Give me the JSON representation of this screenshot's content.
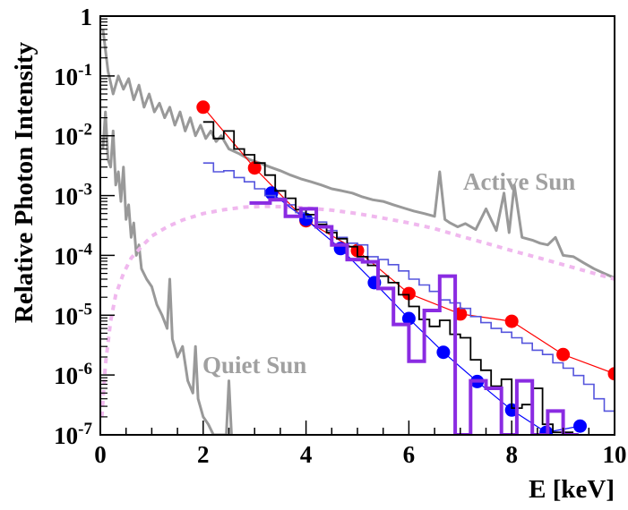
{
  "chart_data": {
    "type": "line",
    "title": "",
    "xlabel": "E [keV]",
    "ylabel": "Relative Photon Intensity",
    "xlim": [
      0,
      10
    ],
    "ylim": [
      1e-07,
      1
    ],
    "yscale": "log",
    "grid": false,
    "x_ticks": [
      "0",
      "2",
      "4",
      "6",
      "8",
      "10"
    ],
    "y_ticks": [
      {
        "mantissa": "10",
        "exp": "-7"
      },
      {
        "mantissa": "10",
        "exp": "-6"
      },
      {
        "mantissa": "10",
        "exp": "-5"
      },
      {
        "mantissa": "10",
        "exp": "-4"
      },
      {
        "mantissa": "10",
        "exp": "-3"
      },
      {
        "mantissa": "10",
        "exp": "-2"
      },
      {
        "mantissa": "10",
        "exp": "-1"
      },
      {
        "mantissa": "1",
        "exp": ""
      }
    ],
    "annotations": [
      {
        "text": "Active Sun",
        "x": 7.1,
        "y": 0.0016
      },
      {
        "text": "Quiet Sun",
        "x": 2.0,
        "y": 1.6e-06
      }
    ],
    "colors": {
      "active_sun": "#999999",
      "quiet_sun": "#999999",
      "pink_dashed": "#f0b8ee",
      "red_points": "#ff0000",
      "blue_points": "#0000ff",
      "black_hist": "#000000",
      "light_blue_hist": "#5555dd",
      "purple_hist": "#8a2be2"
    },
    "series": [
      {
        "style": "line",
        "color": "#999999",
        "width": 3,
        "x": [
          0.05,
          0.15,
          0.25,
          0.35,
          0.45,
          0.55,
          0.65,
          0.75,
          0.85,
          0.95,
          1.05,
          1.15,
          1.25,
          1.35,
          1.45,
          1.55,
          1.65,
          1.75,
          1.85,
          1.95,
          2.05,
          2.15,
          2.25,
          2.35,
          2.5,
          2.7,
          2.9,
          3.1,
          3.3,
          3.5,
          3.7,
          3.9,
          4.1,
          4.3,
          4.5,
          4.7,
          4.9,
          5.1,
          5.3,
          5.5,
          5.7,
          5.9,
          6.1,
          6.3,
          6.5,
          6.6,
          6.7,
          6.8,
          6.95,
          7.1,
          7.3,
          7.5,
          7.7,
          7.85,
          7.95,
          8.05,
          8.2,
          8.4,
          8.55,
          8.7,
          8.85,
          9.0,
          9.2,
          9.4,
          9.6,
          9.8,
          10.0
        ],
        "y": [
          0.6,
          0.12,
          0.05,
          0.1,
          0.06,
          0.09,
          0.04,
          0.07,
          0.03,
          0.05,
          0.025,
          0.035,
          0.02,
          0.03,
          0.015,
          0.025,
          0.012,
          0.02,
          0.01,
          0.015,
          0.009,
          0.012,
          0.008,
          0.01,
          0.006,
          0.005,
          0.004,
          0.0035,
          0.003,
          0.0026,
          0.0022,
          0.0019,
          0.0017,
          0.0015,
          0.0013,
          0.0012,
          0.0011,
          0.00095,
          0.00085,
          0.0008,
          0.0007,
          0.00062,
          0.00055,
          0.0005,
          0.00045,
          0.0025,
          0.0004,
          0.00035,
          0.0003,
          0.00034,
          0.00027,
          0.0006,
          0.00026,
          0.0011,
          0.00024,
          0.0015,
          0.0002,
          0.00018,
          0.00016,
          0.00015,
          0.0002,
          0.0001,
          9.5e-05,
          7.5e-05,
          6e-05,
          5e-05,
          4.2e-05
        ]
      },
      {
        "style": "line",
        "color": "#999999",
        "width": 3,
        "x": [
          0.05,
          0.1,
          0.15,
          0.2,
          0.25,
          0.3,
          0.35,
          0.4,
          0.45,
          0.5,
          0.55,
          0.6,
          0.65,
          0.7,
          0.75,
          0.8,
          0.9,
          1.0,
          1.1,
          1.2,
          1.3,
          1.35,
          1.4,
          1.5,
          1.6,
          1.7,
          1.8,
          1.85,
          1.9,
          2.0,
          2.1,
          2.2,
          2.3,
          2.45,
          2.5,
          2.55
        ],
        "y": [
          0.006,
          0.025,
          0.004,
          0.003,
          0.012,
          0.0015,
          0.0025,
          0.0008,
          0.003,
          0.0004,
          0.0007,
          0.0002,
          0.00035,
          0.0001,
          0.00015,
          6e-05,
          4e-05,
          3e-05,
          1.5e-05,
          1e-05,
          6e-06,
          4e-05,
          4e-06,
          2e-06,
          3e-06,
          8e-07,
          5e-07,
          3e-06,
          4e-07,
          2e-07,
          1.5e-07,
          1e-07,
          1e-07,
          1e-07,
          8e-07,
          1e-07
        ]
      },
      {
        "style": "dashed",
        "color": "#f0b8ee",
        "width": 4,
        "x": [
          0.03,
          0.1,
          0.2,
          0.3,
          0.45,
          0.6,
          0.8,
          1.0,
          1.3,
          1.6,
          2.0,
          2.4,
          2.8,
          3.2,
          3.6,
          4.0,
          4.5,
          5.0,
          5.5,
          6.0,
          6.5,
          7.0,
          7.5,
          8.0,
          8.5,
          9.0,
          9.5,
          10.0
        ],
        "y": [
          2e-07,
          1.5e-06,
          8e-06,
          2.2e-05,
          5e-05,
          9e-05,
          0.00014,
          0.00021,
          0.0003,
          0.00039,
          0.0005,
          0.00058,
          0.00064,
          0.00066,
          0.00065,
          0.00062,
          0.00057,
          0.0005,
          0.00042,
          0.00035,
          0.00028,
          0.00021,
          0.00016,
          0.00012,
          9.2e-05,
          7e-05,
          5.3e-05,
          4e-05
        ]
      },
      {
        "style": "line-markers",
        "color": "#ff0000",
        "width": 1.2,
        "marker_radius": 7.5,
        "x": [
          2,
          3,
          4,
          5,
          6,
          7,
          8,
          9,
          10
        ],
        "y": [
          0.03,
          0.0029,
          0.00038,
          0.00012,
          2.3e-05,
          1.05e-05,
          7.9e-06,
          2.2e-06,
          1.05e-06
        ]
      },
      {
        "style": "line-markers",
        "color": "#0000ff",
        "width": 1.2,
        "marker_radius": 7.5,
        "x": [
          3.33,
          4.0,
          4.67,
          5.33,
          6.0,
          6.67,
          7.33,
          8.0,
          8.67,
          9.33
        ],
        "y": [
          0.0011,
          0.0004,
          0.00013,
          3.5e-05,
          8.8e-06,
          2.4e-06,
          7.8e-07,
          2.6e-07,
          1.1e-07,
          1.4e-07
        ]
      },
      {
        "style": "step",
        "color": "#5555dd",
        "width": 1.6,
        "edges": [
          2.0,
          2.2,
          2.4,
          2.6,
          2.8,
          3.0,
          3.2,
          3.4,
          3.6,
          3.8,
          4.0,
          4.2,
          4.4,
          4.6,
          4.8,
          5.0,
          5.2,
          5.4,
          5.6,
          5.8,
          6.0,
          6.2,
          6.4,
          6.6,
          6.8,
          7.0,
          7.2,
          7.4,
          7.6,
          7.8,
          8.0,
          8.2,
          8.4,
          8.6,
          8.8,
          9.0,
          9.2,
          9.4,
          9.6,
          9.8,
          10.0
        ],
        "values": [
          0.0035,
          0.0025,
          0.0026,
          0.002,
          0.0017,
          0.0013,
          0.001,
          0.0009,
          0.0007,
          0.00052,
          0.00042,
          0.00036,
          0.00026,
          0.0002,
          0.00016,
          0.00015,
          9.5e-05,
          8.5e-05,
          7e-05,
          5.5e-05,
          4e-05,
          3.2e-05,
          2.5e-05,
          1.8e-05,
          1.6e-05,
          1.3e-05,
          9.5e-06,
          7.5e-06,
          6e-06,
          5.2e-06,
          4.2e-06,
          3.4e-06,
          2.6e-06,
          2.2e-06,
          1.6e-06,
          1.3e-06,
          9.8e-07,
          7e-07,
          4e-07,
          2.5e-07
        ]
      },
      {
        "style": "step",
        "color": "#000000",
        "width": 1.8,
        "edges": [
          2.0,
          2.2,
          2.4,
          2.6,
          2.8,
          3.0,
          3.2,
          3.4,
          3.6,
          3.8,
          4.0,
          4.2,
          4.4,
          4.6,
          4.8,
          5.0,
          5.2,
          5.4,
          5.6,
          5.8,
          6.0,
          6.2,
          6.4,
          6.6,
          6.8,
          7.0,
          7.2,
          7.4,
          7.6,
          7.8,
          8.0,
          8.2,
          8.4,
          8.6,
          8.8,
          9.0,
          9.2
        ],
        "values": [
          0.017,
          0.009,
          0.012,
          0.006,
          0.0048,
          0.0035,
          0.0022,
          0.0012,
          0.0009,
          0.00058,
          0.00048,
          0.00033,
          0.00024,
          0.00019,
          0.00014,
          9.5e-05,
          6.8e-05,
          4.5e-05,
          3.5e-05,
          2.2e-05,
          1.4e-05,
          8.5e-06,
          6.5e-06,
          8.2e-06,
          4.8e-06,
          4.2e-06,
          1.8e-06,
          1.2e-06,
          6.5e-07,
          8.5e-07,
          2.8e-07,
          3.2e-07,
          6e-07,
          1.5e-07,
          1.1e-07,
          1.1e-07
        ]
      },
      {
        "style": "step",
        "color": "#8a2be2",
        "width": 4,
        "edges": [
          2.9,
          3.3,
          3.6,
          3.9,
          4.2,
          4.5,
          4.8,
          5.1,
          5.4,
          5.7,
          6.0,
          6.3,
          6.6,
          6.9,
          7.2,
          7.5,
          7.8,
          8.1,
          8.4,
          8.7,
          9.0,
          9.3
        ],
        "values": [
          0.00075,
          0.00085,
          0.00045,
          0.0006,
          0.0003,
          0.00015,
          8.5e-05,
          7.8e-05,
          2.8e-05,
          7e-06,
          1.7e-06,
          1.2e-05,
          4.5e-05,
          1e-07,
          8e-07,
          6e-07,
          1e-07,
          8e-07,
          1e-07,
          2.5e-07,
          1e-07
        ]
      }
    ]
  }
}
